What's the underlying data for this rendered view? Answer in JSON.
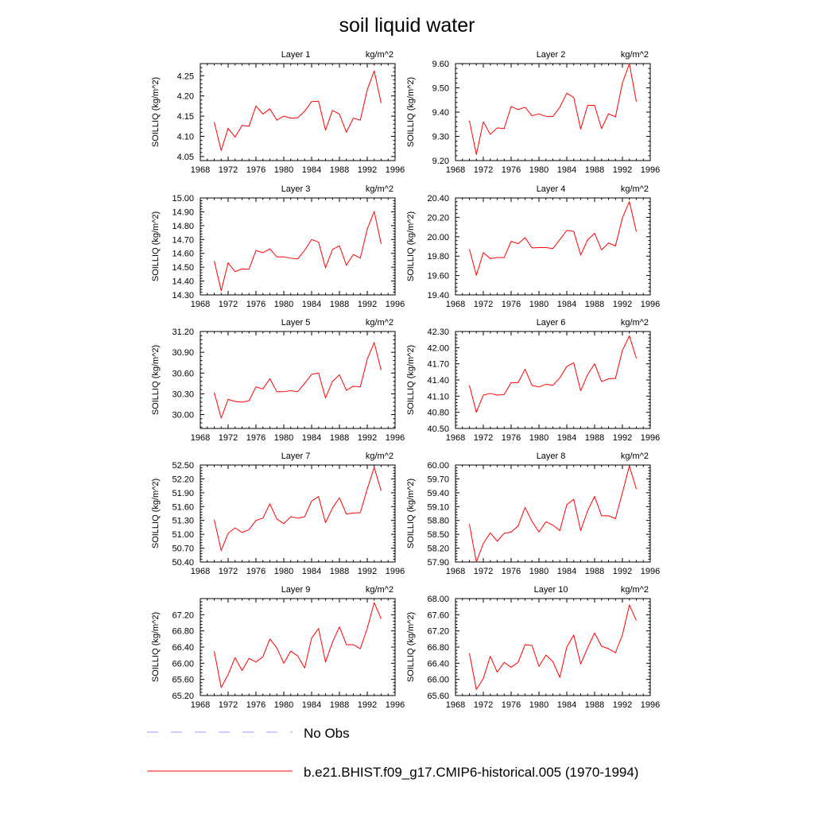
{
  "page": {
    "title": "soil liquid water"
  },
  "legend": {
    "entries": [
      {
        "label": "No Obs",
        "color": "#9999ff",
        "style": "dashed"
      },
      {
        "label": "b.e21.BHIST.f09_g17.CMIP6-historical.005 (1970-1994)",
        "color": "#ff0000",
        "style": "solid"
      }
    ]
  },
  "chart_data": [
    {
      "type": "line",
      "title": "Layer 1",
      "units": "kg/m^2",
      "ylabel": "SOILLIQ  (kg/m^2)",
      "xlim": [
        1968,
        1996
      ],
      "xticks": [
        1968,
        1972,
        1976,
        1980,
        1984,
        1988,
        1992,
        1996
      ],
      "ylim": [
        4.04,
        4.28
      ],
      "yticks": [
        "4.05",
        "4.10",
        "4.15",
        "4.20",
        "4.25"
      ],
      "x": [
        1970,
        1971,
        1972,
        1973,
        1974,
        1975,
        1976,
        1977,
        1978,
        1979,
        1980,
        1981,
        1982,
        1983,
        1984,
        1985,
        1986,
        1987,
        1988,
        1989,
        1990,
        1991,
        1992,
        1993,
        1994
      ],
      "series": [
        {
          "name": "b.e21.BHIST.f09_g17.CMIP6-historical.005 (1970-1994)",
          "color": "#ff0000",
          "values": [
            4.135,
            4.065,
            4.12,
            4.098,
            4.127,
            4.125,
            4.175,
            4.155,
            4.168,
            4.14,
            4.15,
            4.145,
            4.146,
            4.162,
            4.186,
            4.187,
            4.115,
            4.164,
            4.155,
            4.11,
            4.145,
            4.14,
            4.215,
            4.262,
            4.182
          ]
        }
      ]
    },
    {
      "type": "line",
      "title": "Layer 2",
      "units": "kg/m^2",
      "ylabel": "SOILLIQ  (kg/m^2)",
      "xlim": [
        1968,
        1996
      ],
      "xticks": [
        1968,
        1972,
        1976,
        1980,
        1984,
        1988,
        1992,
        1996
      ],
      "ylim": [
        9.2,
        9.6
      ],
      "yticks": [
        "9.20",
        "9.30",
        "9.40",
        "9.50",
        "9.60"
      ],
      "x": [
        1970,
        1971,
        1972,
        1973,
        1974,
        1975,
        1976,
        1977,
        1978,
        1979,
        1980,
        1981,
        1982,
        1983,
        1984,
        1985,
        1986,
        1987,
        1988,
        1989,
        1990,
        1991,
        1992,
        1993,
        1994
      ],
      "series": [
        {
          "name": "b.e21.BHIST.f09_g17.CMIP6-historical.005 (1970-1994)",
          "color": "#ff0000",
          "values": [
            9.365,
            9.225,
            9.36,
            9.308,
            9.335,
            9.332,
            9.423,
            9.41,
            9.42,
            9.385,
            9.392,
            9.383,
            9.382,
            9.42,
            9.478,
            9.46,
            9.33,
            9.428,
            9.428,
            9.332,
            9.393,
            9.38,
            9.52,
            9.6,
            9.443
          ]
        }
      ]
    },
    {
      "type": "line",
      "title": "Layer 3",
      "units": "kg/m^2",
      "ylabel": "SOILLIQ  (kg/m^2)",
      "xlim": [
        1968,
        1996
      ],
      "xticks": [
        1968,
        1972,
        1976,
        1980,
        1984,
        1988,
        1992,
        1996
      ],
      "ylim": [
        14.3,
        15.0
      ],
      "yticks": [
        "14.30",
        "14.40",
        "14.50",
        "14.60",
        "14.70",
        "14.80",
        "14.90",
        "15.00"
      ],
      "x": [
        1970,
        1971,
        1972,
        1973,
        1974,
        1975,
        1976,
        1977,
        1978,
        1979,
        1980,
        1981,
        1982,
        1983,
        1984,
        1985,
        1986,
        1987,
        1988,
        1989,
        1990,
        1991,
        1992,
        1993,
        1994
      ],
      "series": [
        {
          "name": "b.e21.BHIST.f09_g17.CMIP6-historical.005 (1970-1994)",
          "color": "#ff0000",
          "values": [
            14.545,
            14.33,
            14.532,
            14.468,
            14.488,
            14.485,
            14.62,
            14.605,
            14.632,
            14.575,
            14.575,
            14.565,
            14.56,
            14.622,
            14.7,
            14.682,
            14.495,
            14.628,
            14.655,
            14.515,
            14.592,
            14.565,
            14.775,
            14.902,
            14.668
          ]
        }
      ]
    },
    {
      "type": "line",
      "title": "Layer 4",
      "units": "kg/m^2",
      "ylabel": "SOILLIQ  (kg/m^2)",
      "xlim": [
        1968,
        1996
      ],
      "xticks": [
        1968,
        1972,
        1976,
        1980,
        1984,
        1988,
        1992,
        1996
      ],
      "ylim": [
        19.4,
        20.4
      ],
      "yticks": [
        "19.40",
        "19.60",
        "19.80",
        "20.00",
        "20.20",
        "20.40"
      ],
      "x": [
        1970,
        1971,
        1972,
        1973,
        1974,
        1975,
        1976,
        1977,
        1978,
        1979,
        1980,
        1981,
        1982,
        1983,
        1984,
        1985,
        1986,
        1987,
        1988,
        1989,
        1990,
        1991,
        1992,
        1993,
        1994
      ],
      "series": [
        {
          "name": "b.e21.BHIST.f09_g17.CMIP6-historical.005 (1970-1994)",
          "color": "#ff0000",
          "values": [
            19.872,
            19.602,
            19.835,
            19.775,
            19.785,
            19.785,
            19.952,
            19.928,
            19.99,
            19.885,
            19.888,
            19.888,
            19.878,
            19.97,
            20.065,
            20.055,
            19.812,
            19.968,
            20.035,
            19.865,
            19.935,
            19.905,
            20.195,
            20.362,
            20.052
          ]
        }
      ]
    },
    {
      "type": "line",
      "title": "Layer 5",
      "units": "kg/m^2",
      "ylabel": "SOILLIQ  (kg/m^2)",
      "xlim": [
        1968,
        1996
      ],
      "xticks": [
        1968,
        1972,
        1976,
        1980,
        1984,
        1988,
        1992,
        1996
      ],
      "ylim": [
        29.8,
        31.2
      ],
      "yticks": [
        "30.00",
        "30.30",
        "30.60",
        "30.90",
        "31.20"
      ],
      "x": [
        1970,
        1971,
        1972,
        1973,
        1974,
        1975,
        1976,
        1977,
        1978,
        1979,
        1980,
        1981,
        1982,
        1983,
        1984,
        1985,
        1986,
        1987,
        1988,
        1989,
        1990,
        1991,
        1992,
        1993,
        1994
      ],
      "series": [
        {
          "name": "b.e21.BHIST.f09_g17.CMIP6-historical.005 (1970-1994)",
          "color": "#ff0000",
          "values": [
            30.32,
            29.95,
            30.22,
            30.19,
            30.18,
            30.2,
            30.4,
            30.37,
            30.52,
            30.33,
            30.33,
            30.345,
            30.33,
            30.45,
            30.58,
            30.6,
            30.24,
            30.48,
            30.575,
            30.35,
            30.41,
            30.4,
            30.8,
            31.04,
            30.64
          ]
        }
      ]
    },
    {
      "type": "line",
      "title": "Layer 6",
      "units": "kg/m^2",
      "ylabel": "SOILLIQ  (kg/m^2)",
      "xlim": [
        1968,
        1996
      ],
      "xticks": [
        1968,
        1972,
        1976,
        1980,
        1984,
        1988,
        1992,
        1996
      ],
      "ylim": [
        40.5,
        42.3
      ],
      "yticks": [
        "40.50",
        "40.80",
        "41.10",
        "41.40",
        "41.70",
        "42.00",
        "42.30"
      ],
      "x": [
        1970,
        1971,
        1972,
        1973,
        1974,
        1975,
        1976,
        1977,
        1978,
        1979,
        1980,
        1981,
        1982,
        1983,
        1984,
        1985,
        1986,
        1987,
        1988,
        1989,
        1990,
        1991,
        1992,
        1993,
        1994
      ],
      "series": [
        {
          "name": "b.e21.BHIST.f09_g17.CMIP6-historical.005 (1970-1994)",
          "color": "#ff0000",
          "values": [
            41.3,
            40.8,
            41.12,
            41.15,
            41.12,
            41.13,
            41.35,
            41.35,
            41.6,
            41.3,
            41.27,
            41.32,
            41.3,
            41.44,
            41.65,
            41.72,
            41.2,
            41.5,
            41.7,
            41.37,
            41.42,
            41.43,
            41.95,
            42.22,
            41.8
          ]
        }
      ]
    },
    {
      "type": "line",
      "title": "Layer 7",
      "units": "kg/m^2",
      "ylabel": "SOILLIQ  (kg/m^2)",
      "xlim": [
        1968,
        1996
      ],
      "xticks": [
        1968,
        1972,
        1976,
        1980,
        1984,
        1988,
        1992,
        1996
      ],
      "ylim": [
        50.4,
        52.5
      ],
      "yticks": [
        "50.40",
        "50.70",
        "51.00",
        "51.30",
        "51.60",
        "51.90",
        "52.20",
        "52.50"
      ],
      "x": [
        1970,
        1971,
        1972,
        1973,
        1974,
        1975,
        1976,
        1977,
        1978,
        1979,
        1980,
        1981,
        1982,
        1983,
        1984,
        1985,
        1986,
        1987,
        1988,
        1989,
        1990,
        1991,
        1992,
        1993,
        1994
      ],
      "series": [
        {
          "name": "b.e21.BHIST.f09_g17.CMIP6-historical.005 (1970-1994)",
          "color": "#ff0000",
          "values": [
            51.32,
            50.65,
            51.02,
            51.14,
            51.04,
            51.1,
            51.3,
            51.35,
            51.66,
            51.33,
            51.23,
            51.38,
            51.35,
            51.38,
            51.72,
            51.82,
            51.25,
            51.57,
            51.79,
            51.44,
            51.46,
            51.47,
            51.98,
            52.45,
            51.94
          ]
        }
      ]
    },
    {
      "type": "line",
      "title": "Layer 8",
      "units": "kg/m^2",
      "ylabel": "SOILLIQ  (kg/m^2)",
      "xlim": [
        1968,
        1996
      ],
      "xticks": [
        1968,
        1972,
        1976,
        1980,
        1984,
        1988,
        1992,
        1996
      ],
      "ylim": [
        57.9,
        60.0
      ],
      "yticks": [
        "57.90",
        "58.20",
        "58.50",
        "58.80",
        "59.10",
        "59.40",
        "59.70",
        "60.00"
      ],
      "x": [
        1970,
        1971,
        1972,
        1973,
        1974,
        1975,
        1976,
        1977,
        1978,
        1979,
        1980,
        1981,
        1982,
        1983,
        1984,
        1985,
        1986,
        1987,
        1988,
        1989,
        1990,
        1991,
        1992,
        1993,
        1994
      ],
      "series": [
        {
          "name": "b.e21.BHIST.f09_g17.CMIP6-historical.005 (1970-1994)",
          "color": "#ff0000",
          "values": [
            58.72,
            57.9,
            58.3,
            58.53,
            58.35,
            58.52,
            58.55,
            58.68,
            59.08,
            58.78,
            58.55,
            58.77,
            58.7,
            58.58,
            59.14,
            59.26,
            58.58,
            59.01,
            59.32,
            58.9,
            58.9,
            58.84,
            59.4,
            59.98,
            59.48
          ]
        }
      ]
    },
    {
      "type": "line",
      "title": "Layer 9",
      "units": "kg/m^2",
      "ylabel": "SOILLIQ  (kg/m^2)",
      "xlim": [
        1968,
        1996
      ],
      "xticks": [
        1968,
        1972,
        1976,
        1980,
        1984,
        1988,
        1992,
        1996
      ],
      "ylim": [
        65.2,
        67.6
      ],
      "yticks": [
        "65.20",
        "65.60",
        "66.00",
        "66.40",
        "66.80",
        "67.20"
      ],
      "x": [
        1970,
        1971,
        1972,
        1973,
        1974,
        1975,
        1976,
        1977,
        1978,
        1979,
        1980,
        1981,
        1982,
        1983,
        1984,
        1985,
        1986,
        1987,
        1988,
        1989,
        1990,
        1991,
        1992,
        1993,
        1994
      ],
      "series": [
        {
          "name": "b.e21.BHIST.f09_g17.CMIP6-historical.005 (1970-1994)",
          "color": "#ff0000",
          "values": [
            66.3,
            65.4,
            65.72,
            66.14,
            65.82,
            66.12,
            66.03,
            66.16,
            66.6,
            66.38,
            66.0,
            66.3,
            66.18,
            65.88,
            66.62,
            66.86,
            66.03,
            66.52,
            66.9,
            66.46,
            66.46,
            66.36,
            66.86,
            67.5,
            67.1
          ]
        }
      ]
    },
    {
      "type": "line",
      "title": "Layer 10",
      "units": "kg/m^2",
      "ylabel": "SOILLIQ  (kg/m^2)",
      "xlim": [
        1968,
        1996
      ],
      "xticks": [
        1968,
        1972,
        1976,
        1980,
        1984,
        1988,
        1992,
        1996
      ],
      "ylim": [
        65.6,
        68.0
      ],
      "yticks": [
        "65.60",
        "66.00",
        "66.40",
        "66.80",
        "67.20",
        "67.60",
        "68.00"
      ],
      "x": [
        1970,
        1971,
        1972,
        1973,
        1974,
        1975,
        1976,
        1977,
        1978,
        1979,
        1980,
        1981,
        1982,
        1983,
        1984,
        1985,
        1986,
        1987,
        1988,
        1989,
        1990,
        1991,
        1992,
        1993,
        1994
      ],
      "series": [
        {
          "name": "b.e21.BHIST.f09_g17.CMIP6-historical.005 (1970-1994)",
          "color": "#ff0000",
          "values": [
            66.65,
            65.75,
            66.02,
            66.57,
            66.18,
            66.42,
            66.3,
            66.42,
            66.86,
            66.84,
            66.32,
            66.6,
            66.44,
            66.05,
            66.8,
            67.1,
            66.38,
            66.78,
            67.15,
            66.82,
            66.76,
            66.66,
            67.1,
            67.84,
            67.46
          ]
        }
      ]
    }
  ]
}
